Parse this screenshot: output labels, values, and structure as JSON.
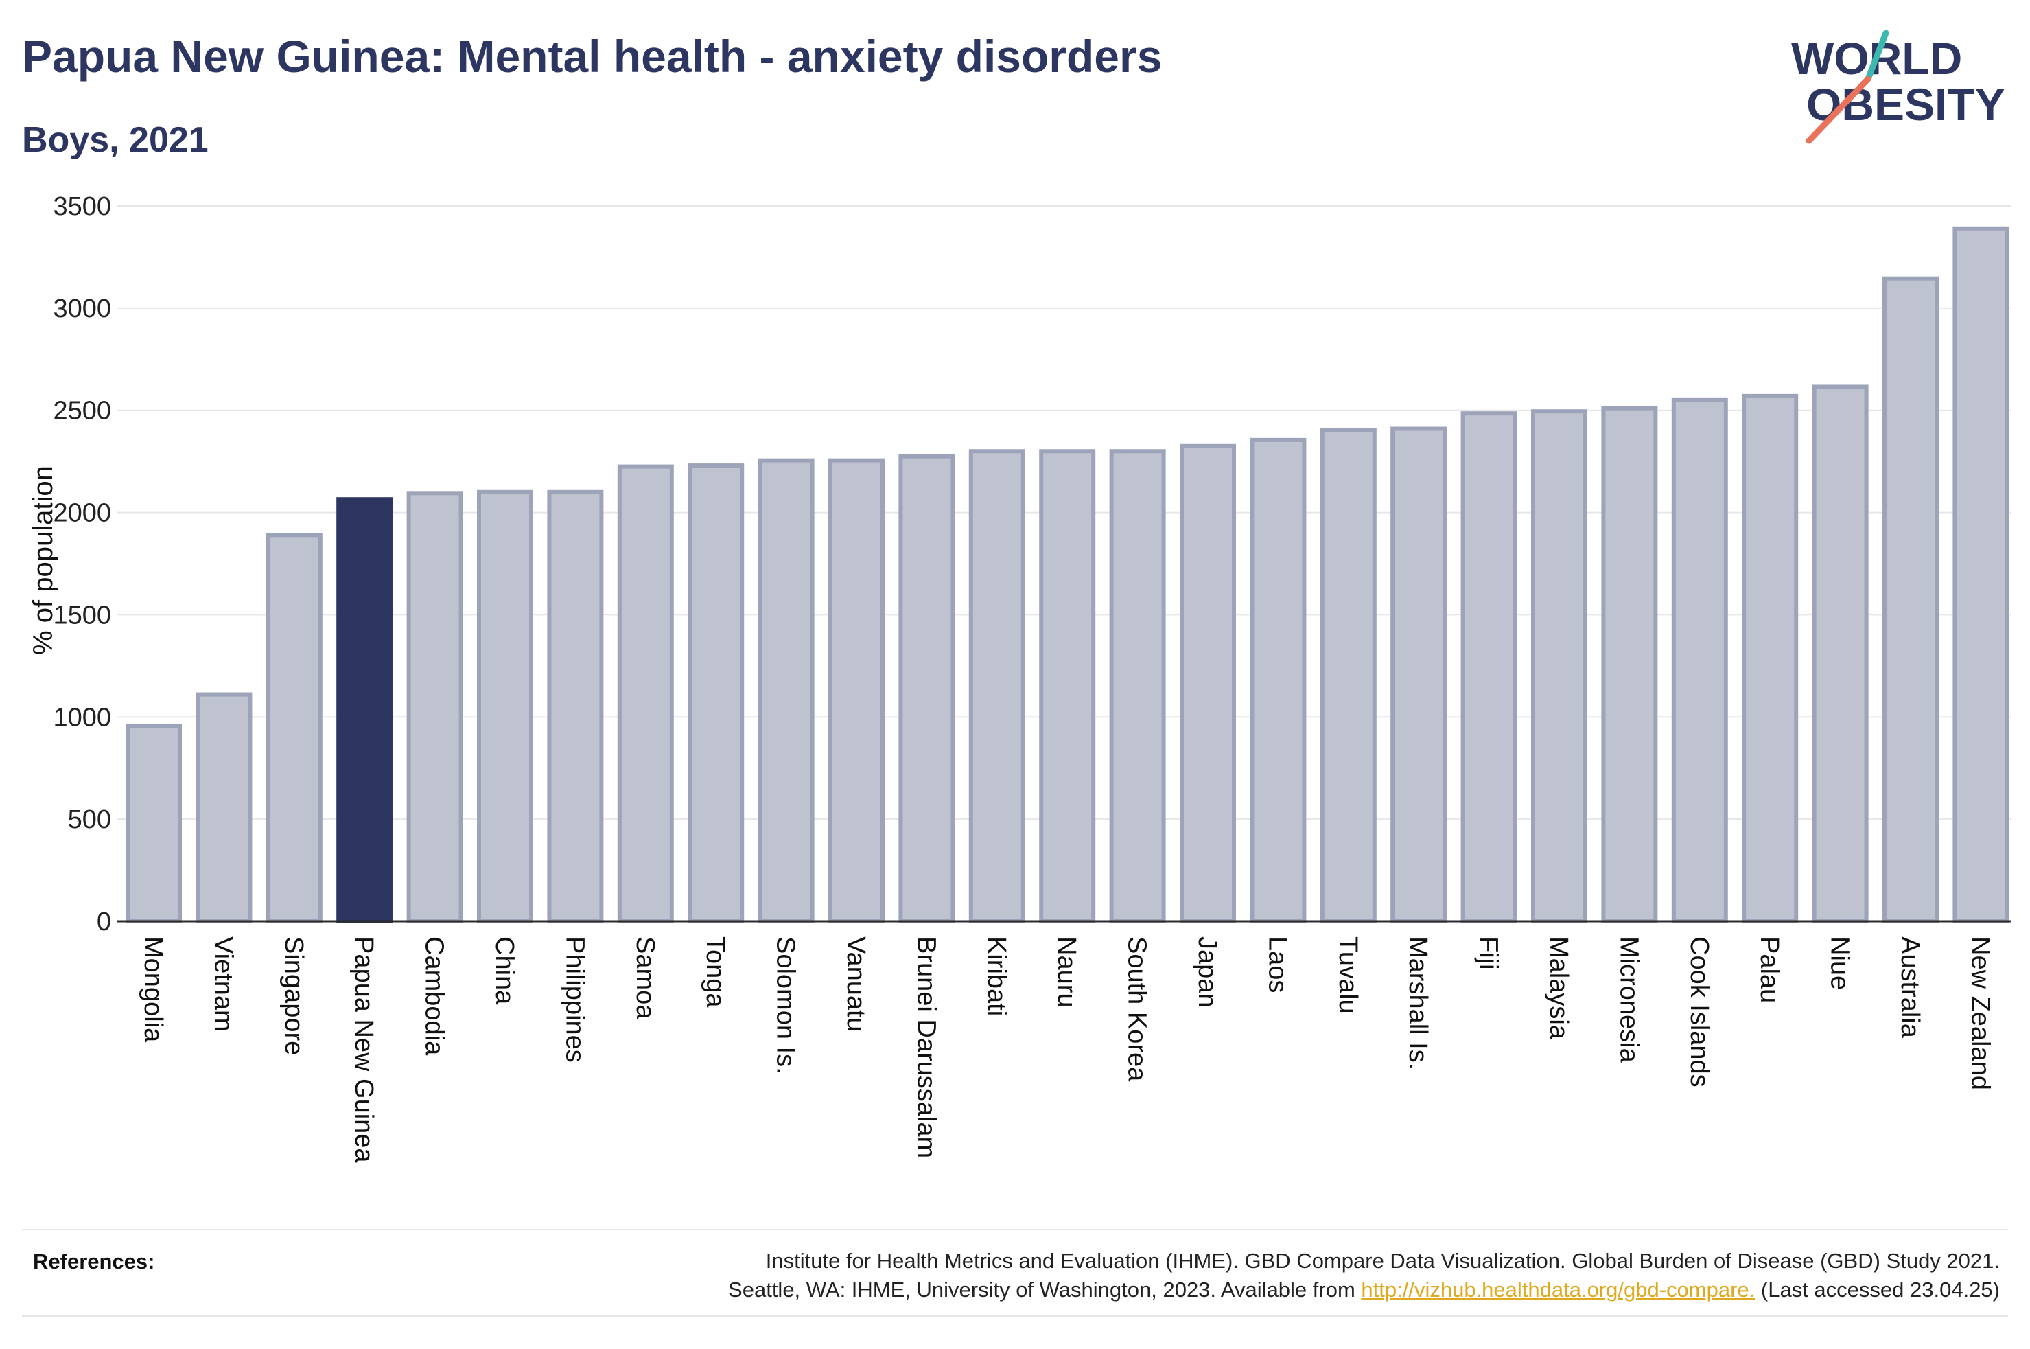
{
  "header": {
    "title": "Papua New Guinea: Mental health - anxiety disorders",
    "subtitle": "Boys, 2021"
  },
  "logo": {
    "line1": "WORLD",
    "line2": "OBESITY",
    "accent_colors": [
      "#3bb8b0",
      "#e8735a"
    ]
  },
  "references": {
    "label": "References:",
    "line1": "Institute for Health Metrics and Evaluation (IHME). GBD Compare Data Visualization. Global Burden of Disease (GBD) Study 2021.",
    "line2_before": "Seattle, WA: IHME, University of Washington, 2023. Available from ",
    "link": "http://vizhub.healthdata.org/gbd-compare.",
    "line2_after": " (Last accessed 23.04.25)"
  },
  "chart_data": {
    "type": "bar",
    "title": "Papua New Guinea: Mental health - anxiety disorders",
    "subtitle": "Boys, 2021",
    "xlabel": "",
    "ylabel": "% of population",
    "ylim": [
      0,
      3500
    ],
    "yticks": [
      0,
      500,
      1000,
      1500,
      2000,
      2500,
      3000,
      3500
    ],
    "grid": true,
    "highlight": "Papua New Guinea",
    "colors": {
      "bar": "#bfc3d0",
      "bar_edge": "#9da3b8",
      "highlight": "#2d3561"
    },
    "categories": [
      "Mongolia",
      "Vietnam",
      "Singapore",
      "Papua New Guinea",
      "Cambodia",
      "China",
      "Philippines",
      "Samoa",
      "Tonga",
      "Solomon Is.",
      "Vanuatu",
      "Brunei Darussalam",
      "Kiribati",
      "Nauru",
      "South Korea",
      "Japan",
      "Laos",
      "Tuvalu",
      "Marshall Is.",
      "Fiji",
      "Malaysia",
      "Micronesia",
      "Cook Islands",
      "Palau",
      "Niue",
      "Australia",
      "New Zealand"
    ],
    "values": [
      955,
      1110,
      1890,
      2065,
      2095,
      2100,
      2100,
      2225,
      2230,
      2255,
      2255,
      2275,
      2300,
      2300,
      2300,
      2325,
      2355,
      2405,
      2410,
      2485,
      2495,
      2510,
      2550,
      2570,
      2615,
      3145,
      3390
    ]
  }
}
